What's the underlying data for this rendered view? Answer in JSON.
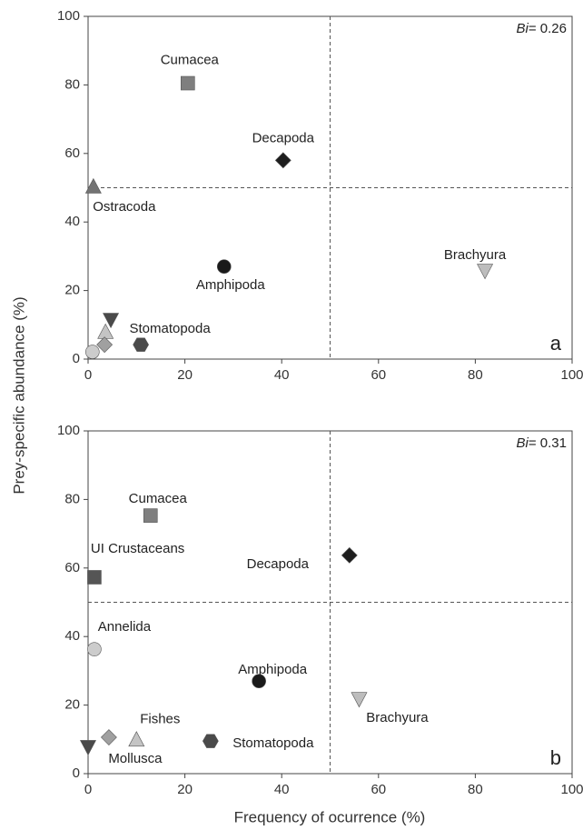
{
  "chart_data": [
    {
      "type": "scatter",
      "panel": "a",
      "annotation": {
        "italic": "Bi",
        "text": "= 0.26"
      },
      "ylabel": "Prey-specific abundance (%)",
      "xlim": [
        0,
        100
      ],
      "xticks": [
        0,
        20,
        40,
        60,
        80,
        100
      ],
      "ylim": [
        0,
        100
      ],
      "yticks": [
        0,
        20,
        40,
        60,
        80,
        100
      ],
      "hlines": [
        50
      ],
      "vlines": [
        50
      ],
      "series": [
        {
          "name": "Cumacea",
          "marker": "square",
          "color": "#7f7f7f",
          "x": [
            20.6
          ],
          "values": [
            80.5
          ]
        },
        {
          "name": "Decapoda",
          "marker": "diamond",
          "color": "#1e1e1e",
          "x": [
            40.3
          ],
          "values": [
            58
          ]
        },
        {
          "name": "Ostracoda",
          "marker": "triangle-up",
          "color": "#737373",
          "x": [
            1.1
          ],
          "values": [
            50.4
          ]
        },
        {
          "name": "Brachyura",
          "marker": "triangle-down",
          "color": "#bdbdbd",
          "x": [
            82
          ],
          "values": [
            25.7
          ]
        },
        {
          "name": "Amphipoda",
          "marker": "circle",
          "color": "#1a1a1a",
          "x": [
            28.1
          ],
          "values": [
            27
          ]
        },
        {
          "name": "Stomatopoda",
          "marker": "hexagon",
          "color": "#4a4a4a",
          "x": [
            10.9
          ],
          "values": [
            4.2
          ]
        },
        {
          "name": null,
          "marker": "triangle-down",
          "color": "#4a4a4a",
          "x": [
            4.7
          ],
          "values": [
            11.4
          ]
        },
        {
          "name": null,
          "marker": "triangle-up",
          "color": "#c4c4c4",
          "x": [
            3.6
          ],
          "values": [
            8
          ]
        },
        {
          "name": null,
          "marker": "diamond",
          "color": "#a0a0a0",
          "x": [
            3.4
          ],
          "values": [
            4.2
          ]
        },
        {
          "name": null,
          "marker": "circle",
          "color": "#cccccc",
          "x": [
            0.9
          ],
          "values": [
            2.1
          ]
        }
      ]
    },
    {
      "type": "scatter",
      "panel": "b",
      "annotation": {
        "italic": "Bi",
        "text": "= 0.31"
      },
      "xlabel": "Frequency of ocurrence (%)",
      "xlim": [
        0,
        100
      ],
      "xticks": [
        0,
        20,
        40,
        60,
        80,
        100
      ],
      "ylim": [
        0,
        100
      ],
      "yticks": [
        0,
        20,
        40,
        60,
        80,
        100
      ],
      "hlines": [
        50
      ],
      "vlines": [
        50
      ],
      "series": [
        {
          "name": "Cumacea",
          "marker": "square",
          "color": "#7f7f7f",
          "x": [
            12.9
          ],
          "values": [
            75.3
          ]
        },
        {
          "name": "UI Crustaceans",
          "marker": "square",
          "color": "#555555",
          "x": [
            1.3
          ],
          "values": [
            57.3
          ]
        },
        {
          "name": "Decapoda",
          "marker": "diamond",
          "color": "#1e1e1e",
          "x": [
            54
          ],
          "values": [
            63.7
          ]
        },
        {
          "name": "Annelida",
          "marker": "circle",
          "color": "#cccccc",
          "x": [
            1.3
          ],
          "values": [
            36.3
          ]
        },
        {
          "name": "Amphipoda",
          "marker": "circle",
          "color": "#1a1a1a",
          "x": [
            35.3
          ],
          "values": [
            27
          ]
        },
        {
          "name": "Brachyura",
          "marker": "triangle-down",
          "color": "#bdbdbd",
          "x": [
            56
          ],
          "values": [
            21.7
          ]
        },
        {
          "name": "Fishes",
          "marker": "triangle-up",
          "color": "#c4c4c4",
          "x": [
            10
          ],
          "values": [
            10
          ]
        },
        {
          "name": "Mollusca",
          "marker": "diamond",
          "color": "#a0a0a0",
          "x": [
            4.3
          ],
          "values": [
            10.6
          ]
        },
        {
          "name": "Stomatopoda",
          "marker": "hexagon",
          "color": "#4a4a4a",
          "x": [
            25.3
          ],
          "values": [
            9.5
          ]
        },
        {
          "name": null,
          "marker": "triangle-down",
          "color": "#4a4a4a",
          "x": [
            0
          ],
          "values": [
            7.7
          ]
        }
      ]
    }
  ]
}
